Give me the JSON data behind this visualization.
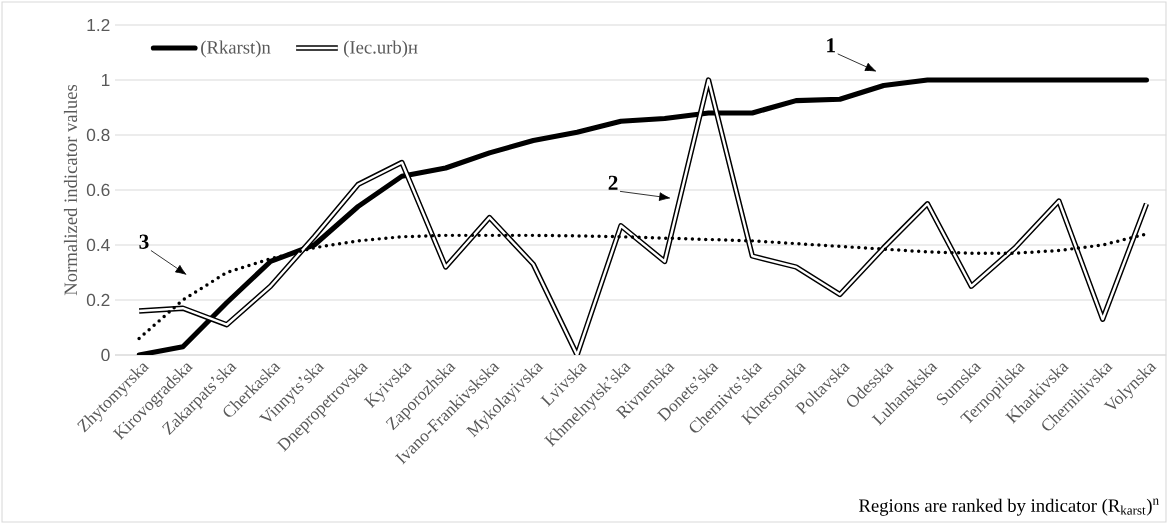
{
  "chart_data": {
    "type": "line",
    "ylabel": "Normalized indicator values",
    "xlabel": "Regions are ranked by indicator (R$_{karst}$)$^{n}$",
    "categories": [
      "Zhytomyrska",
      "Kirovogradska",
      "Zakarpats’ska",
      "Cherkaska",
      "Vinnyts’ska",
      "Dnepropetrovska",
      "Kyivska",
      "Zaporozhska",
      "Ivano-Frankivskska",
      "Mykolayivska",
      "Lvivska",
      "Khmelnytsk’ska",
      "Rivnenska",
      "Donets’ska",
      "Chernivts’ska",
      "Khersonska",
      "Poltavska",
      "Odesska",
      "Luhanskska",
      "Sumska",
      "Ternopilska",
      "Kharkivska",
      "Chernihivska",
      "Volynska"
    ],
    "series": [
      {
        "name": "(Rkarst)n",
        "color": "#000000",
        "line_style": "solid",
        "values": [
          0,
          0.03,
          0.19,
          0.34,
          0.4,
          0.54,
          0.65,
          0.68,
          0.735,
          0.78,
          0.81,
          0.85,
          0.86,
          0.88,
          0.88,
          0.925,
          0.93,
          0.98,
          1,
          1,
          1,
          1,
          1,
          1
        ]
      },
      {
        "name": "(Iec.urb)н",
        "color": "#000000",
        "line_style": "solid",
        "values": [
          0.16,
          0.17,
          0.11,
          0.25,
          0.43,
          0.62,
          0.7,
          0.32,
          0.5,
          0.33,
          0,
          0.47,
          0.34,
          1,
          0.36,
          0.32,
          0.22,
          0.39,
          0.55,
          0.25,
          0.39,
          0.56,
          0.13,
          0.55
        ]
      },
      {
        "type": "line",
        "color": "#000000",
        "line_style": "dotted",
        "values": [
          0.06,
          0.2,
          0.3,
          0.35,
          0.39,
          0.415,
          0.43,
          0.435,
          0.435,
          0.435,
          0.433,
          0.43,
          0.425,
          0.42,
          0.415,
          0.405,
          0.395,
          0.385,
          0.375,
          0.37,
          0.37,
          0.38,
          0.4,
          0.44
        ]
      }
    ],
    "ylim": [
      0,
      1.2
    ],
    "yticks": [
      0,
      0.2,
      0.4,
      0.6,
      0.8,
      1,
      1.2
    ],
    "grid": "y",
    "legend": "top left",
    "annotations": [
      "1",
      "2",
      "3"
    ]
  }
}
